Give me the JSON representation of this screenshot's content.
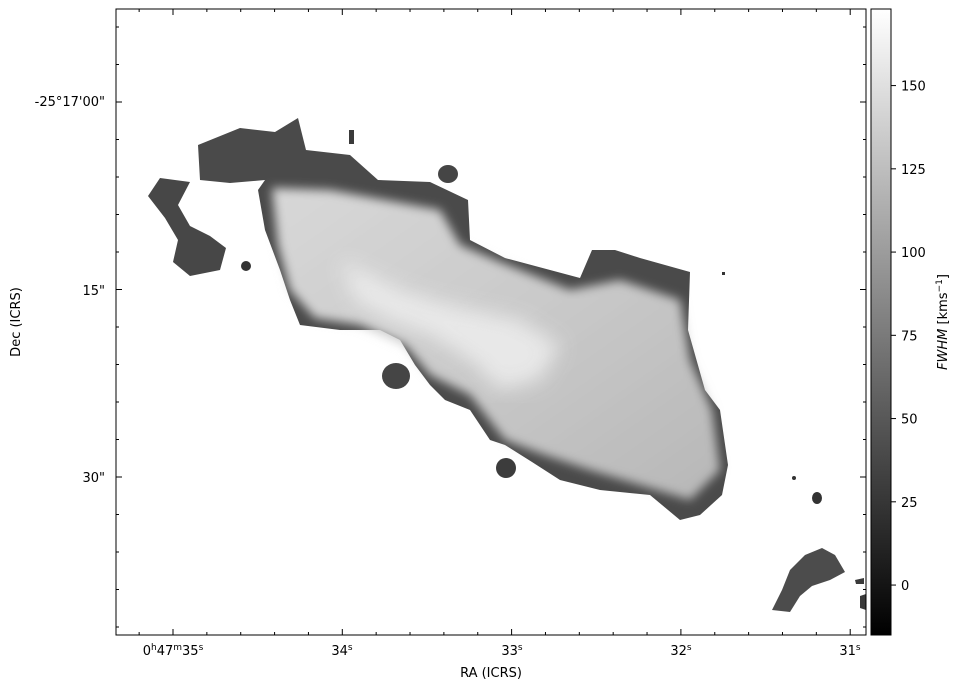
{
  "chart_data": {
    "type": "heatmap",
    "title": "",
    "xlabel": "RA (ICRS)",
    "ylabel": "Dec (ICRS)",
    "x_ticks": [
      {
        "label": "0h47m35s",
        "base": "0",
        "h": "h",
        "m1": "47",
        "m": "m",
        "s1": "35",
        "s": "s"
      },
      {
        "label": "34s",
        "base": "34",
        "s": "s"
      },
      {
        "label": "33s",
        "base": "33",
        "s": "s"
      },
      {
        "label": "32s",
        "base": "32",
        "s": "s"
      },
      {
        "label": "31s",
        "base": "31",
        "s": "s"
      }
    ],
    "y_ticks": [
      "-25°17'00\"",
      "15\"",
      "30\""
    ],
    "colorbar": {
      "label": "FWHM [kms⁻¹]",
      "label_italic": "FWHM",
      "label_unit": "[kms",
      "label_exp": "−1",
      "label_close": "]",
      "colormap": "gray",
      "range": [
        -15,
        173
      ],
      "ticks": [
        "0",
        "25",
        "50",
        "75",
        "100",
        "125",
        "150"
      ]
    },
    "grid": false
  }
}
